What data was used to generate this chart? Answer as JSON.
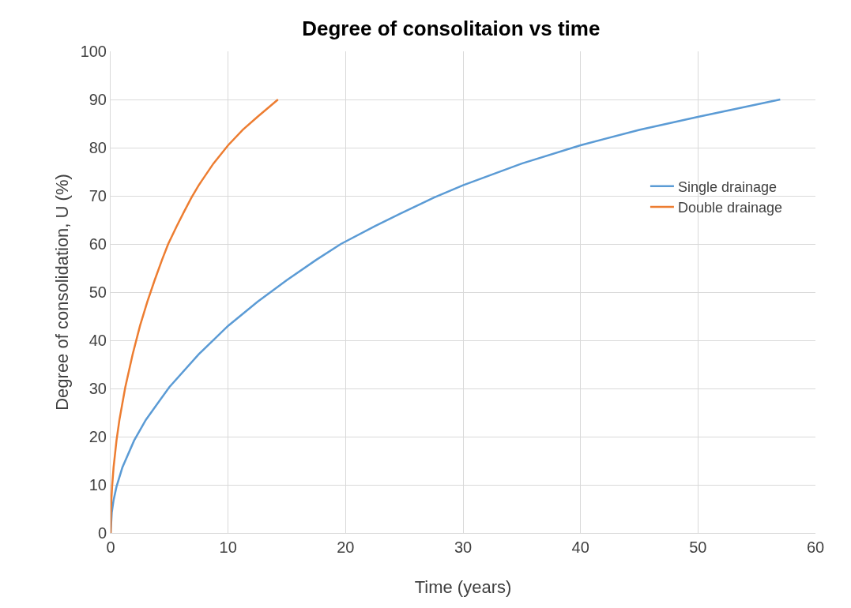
{
  "chart_data": {
    "type": "line",
    "title": "Degree of consolitaion vs time",
    "xlabel": "Time (years)",
    "ylabel": "Degree of consolidation, U (%)",
    "xlim": [
      0,
      60
    ],
    "xticks": [
      0,
      10,
      20,
      30,
      40,
      50,
      60
    ],
    "ylim": [
      0,
      100
    ],
    "yticks": [
      0,
      10,
      20,
      30,
      40,
      50,
      60,
      70,
      80,
      90,
      100
    ],
    "grid": true,
    "legend": "right",
    "marker": "none",
    "line_style": "solid",
    "series": [
      {
        "name": "Single drainage",
        "color": "#5b9bd5",
        "x": [
          0,
          0.1,
          0.25,
          0.5,
          1,
          2,
          3,
          5,
          7.5,
          10,
          12.5,
          15,
          17.5,
          19.6,
          22.5,
          25,
          27.5,
          30,
          35,
          40,
          45,
          50,
          57
        ],
        "values": [
          0,
          4.3,
          6.8,
          9.6,
          13.6,
          19.2,
          23.5,
          30.3,
          37.1,
          43,
          48,
          52.5,
          56.7,
          60,
          63.7,
          66.7,
          69.6,
          72.2,
          76.7,
          80.5,
          83.7,
          86.4,
          90
        ]
      },
      {
        "name": "Double drainage",
        "color": "#ed7d31",
        "x": [
          0,
          0.025,
          0.0625,
          0.125,
          0.25,
          0.5,
          0.75,
          1.25,
          1.875,
          2.5,
          3.125,
          3.75,
          4.375,
          4.9,
          5.625,
          6.25,
          6.875,
          7.5,
          8.75,
          10,
          11.25,
          12.5,
          14.25
        ],
        "values": [
          0,
          4.3,
          6.8,
          9.6,
          13.6,
          19.2,
          23.5,
          30.3,
          37.1,
          43,
          48,
          52.5,
          56.7,
          60,
          63.7,
          66.7,
          69.6,
          72.2,
          76.7,
          80.5,
          83.7,
          86.4,
          90
        ]
      }
    ]
  }
}
